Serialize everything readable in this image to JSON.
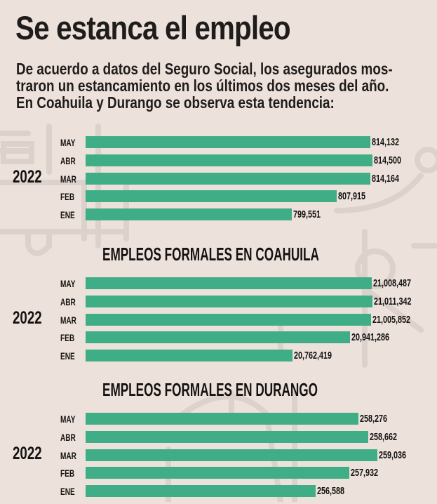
{
  "header": {
    "title": "Se estanca el empleo",
    "subtitle_lines": [
      "De acuerdo a datos del Seguro Social, los asegurados mos-",
      "traron un estancamiento en los últimos dos meses del año.",
      "En Coahuila y Durango se observa esta tendencia:"
    ]
  },
  "colors": {
    "bar": "#3fae86",
    "background": "#ede2db",
    "text": "#141212",
    "decoration": "#d8cec8"
  },
  "chart_data": [
    {
      "type": "bar",
      "orientation": "horizontal",
      "title": "",
      "group_label": "2022",
      "categories": [
        "MAY",
        "ABR",
        "MAR",
        "FEB",
        "ENE"
      ],
      "values": [
        814132,
        814500,
        814164,
        807915,
        799551
      ],
      "labels": [
        "814,132",
        "814,500",
        "814,164",
        "807,915",
        "799,551"
      ],
      "xlim": [
        761333,
        818540
      ]
    },
    {
      "type": "bar",
      "orientation": "horizontal",
      "title": "EMPLEOS FORMALES EN COAHUILA",
      "group_label": "2022",
      "categories": [
        "MAY",
        "ABR",
        "MAR",
        "FEB",
        "ENE"
      ],
      "values": [
        21008487,
        21011342,
        21005852,
        20941286,
        20762419
      ],
      "labels": [
        "21,008,487",
        "21,011,342",
        "21,005,852",
        "20,941,286",
        "20,762,419"
      ],
      "xlim": [
        20118278,
        21078700
      ]
    },
    {
      "type": "bar",
      "orientation": "horizontal",
      "title": "EMPLEOS FORMALES EN DURANGO",
      "group_label": "2022",
      "categories": [
        "MAY",
        "ABR",
        "MAR",
        "FEB",
        "ENE"
      ],
      "values": [
        258276,
        258662,
        259036,
        257932,
        256588
      ],
      "labels": [
        "258,276",
        "258,662",
        "259,036",
        "257,932",
        "256,588"
      ],
      "xlim": [
        247464,
        259700
      ]
    }
  ]
}
